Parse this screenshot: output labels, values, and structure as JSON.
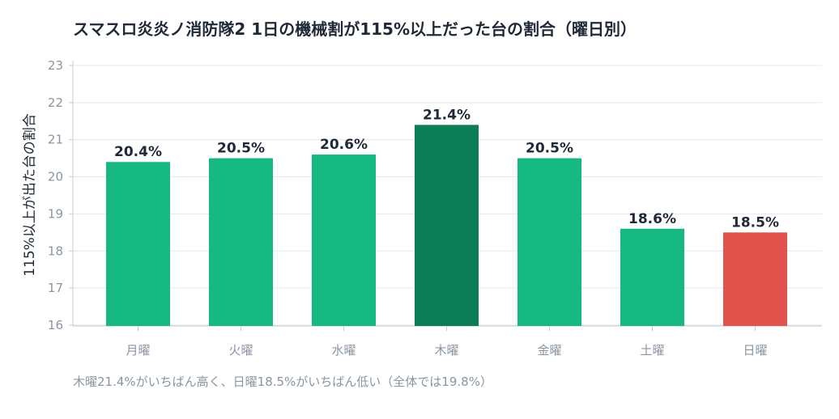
{
  "chart_data": {
    "type": "bar",
    "title": "スマスロ炎炎ノ消防隊2 1日の機械割が115%以上だった台の割合（曜日別）",
    "ylabel": "115%以上が出た台の割合",
    "xlabel": "",
    "categories": [
      "月曜",
      "火曜",
      "水曜",
      "木曜",
      "金曜",
      "土曜",
      "日曜"
    ],
    "values": [
      20.4,
      20.5,
      20.6,
      21.4,
      20.5,
      18.6,
      18.5
    ],
    "value_labels": [
      "20.4%",
      "20.5%",
      "20.6%",
      "21.4%",
      "20.5%",
      "18.6%",
      "18.5%"
    ],
    "ylim": [
      16,
      23
    ],
    "yticks": [
      16,
      17,
      18,
      19,
      20,
      21,
      22,
      23
    ],
    "grid": true,
    "colors": {
      "default": "#17b982",
      "highest": "#0b7d57",
      "lowest": "#e0544d"
    },
    "caption": "木曜21.4%がいちばん高く、日曜18.5%がいちばん低い（全体では19.8%）"
  }
}
